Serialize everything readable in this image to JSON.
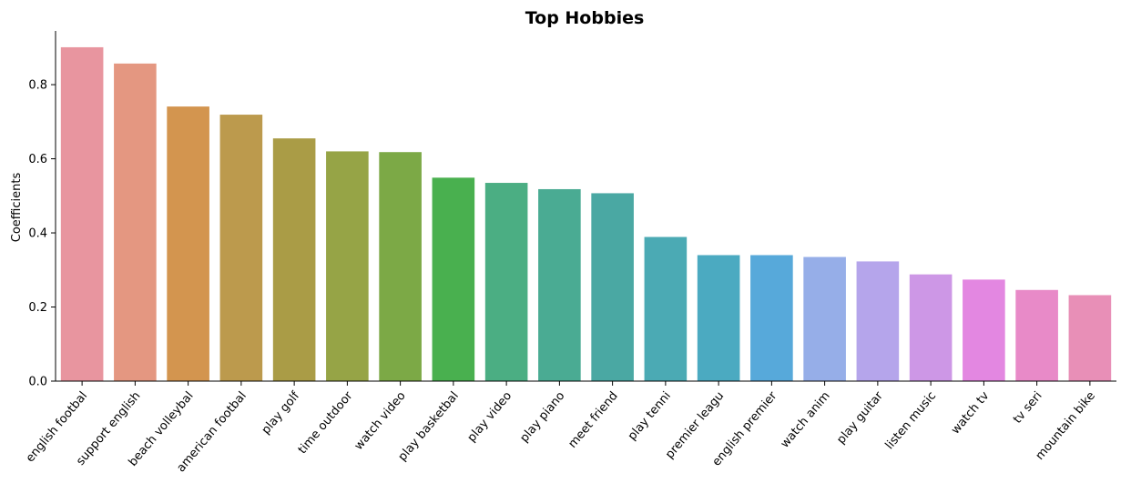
{
  "chart_data": {
    "type": "bar",
    "title": "Top Hobbies",
    "xlabel": "",
    "ylabel": "Coefficients",
    "ylim": [
      0,
      0.945
    ],
    "yticks": [
      0.0,
      0.2,
      0.4,
      0.6,
      0.8
    ],
    "ytick_labels": [
      "0.0",
      "0.2",
      "0.4",
      "0.6",
      "0.8"
    ],
    "grid": false,
    "legend": "none",
    "categories": [
      "english footbal",
      "support english",
      "beach volleybal",
      "american footbal",
      "play golf",
      "time outdoor",
      "watch video",
      "play basketbal",
      "play video",
      "play piano",
      "meet friend",
      "play tenni",
      "premier leagu",
      "english premier",
      "watch anim",
      "play guitar",
      "listen music",
      "watch tv",
      "tv seri",
      "mountain bike"
    ],
    "values": [
      0.901,
      0.857,
      0.741,
      0.719,
      0.655,
      0.62,
      0.618,
      0.549,
      0.535,
      0.518,
      0.507,
      0.389,
      0.34,
      0.34,
      0.335,
      0.323,
      0.288,
      0.274,
      0.246,
      0.232
    ],
    "colors": [
      "#e8959f",
      "#e49781",
      "#d3954f",
      "#bc9a4d",
      "#aa9c46",
      "#96a446",
      "#7ca946",
      "#49b04f",
      "#4bae83",
      "#4aab93",
      "#4aa8a3",
      "#4baab4",
      "#4baac1",
      "#57a9da",
      "#96aee8",
      "#b5a5eb",
      "#cd97e6",
      "#e387e1",
      "#e88ac8",
      "#e88fb7"
    ]
  }
}
